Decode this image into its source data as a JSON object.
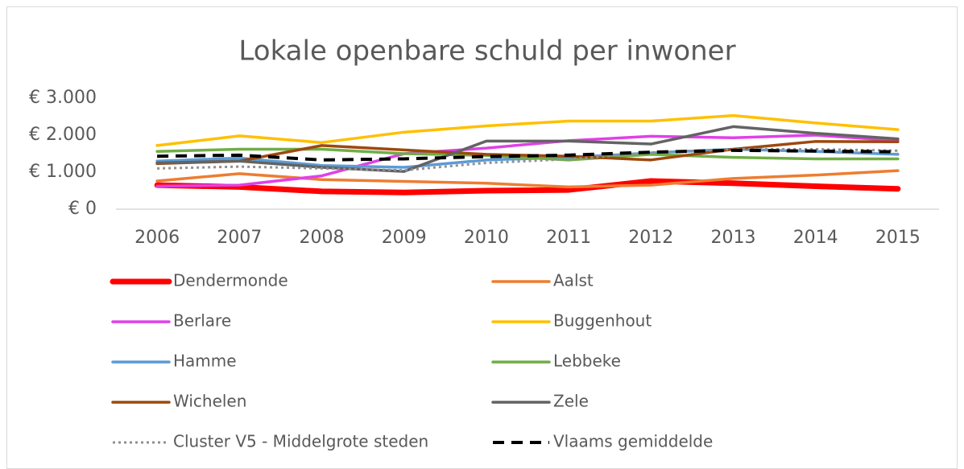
{
  "chart_data": {
    "type": "line",
    "title": "Lokale openbare schuld per inwoner",
    "categories": [
      "2006",
      "2007",
      "2008",
      "2009",
      "2010",
      "2011",
      "2012",
      "2013",
      "2014",
      "2015"
    ],
    "ylim": [
      0,
      3000
    ],
    "yticks": [
      {
        "value": 0,
        "label": "€ 0"
      },
      {
        "value": 1000,
        "label": "€ 1.000"
      },
      {
        "value": 2000,
        "label": "€ 2.000"
      },
      {
        "value": 3000,
        "label": "€ 3.000"
      }
    ],
    "grid": false,
    "legend": "bottom",
    "series": [
      {
        "name": "Dendermonde",
        "color": "#ff0000",
        "line_width": 7,
        "style": "solid",
        "values": [
          650,
          600,
          480,
          450,
          500,
          520,
          760,
          700,
          620,
          550
        ]
      },
      {
        "name": "Aalst",
        "color": "#ed7d31",
        "line_width": 3.5,
        "style": "solid",
        "values": [
          760,
          960,
          800,
          750,
          700,
          600,
          650,
          830,
          920,
          1040
        ]
      },
      {
        "name": "Berlare",
        "color": "#e040e8",
        "line_width": 3.5,
        "style": "solid",
        "values": [
          620,
          650,
          900,
          1500,
          1650,
          1850,
          1970,
          1930,
          2000,
          1850
        ]
      },
      {
        "name": "Buggenhout",
        "color": "#ffc000",
        "line_width": 3.5,
        "style": "solid",
        "values": [
          1720,
          1980,
          1800,
          2080,
          2250,
          2380,
          2380,
          2530,
          2330,
          2150
        ]
      },
      {
        "name": "Hamme",
        "color": "#5b9bd5",
        "line_width": 3.5,
        "style": "solid",
        "values": [
          1300,
          1380,
          1180,
          1130,
          1330,
          1400,
          1520,
          1620,
          1560,
          1480
        ]
      },
      {
        "name": "Lebbeke",
        "color": "#70ad47",
        "line_width": 3.5,
        "style": "solid",
        "values": [
          1560,
          1620,
          1620,
          1500,
          1450,
          1330,
          1480,
          1400,
          1360,
          1360
        ]
      },
      {
        "name": "Wichelen",
        "color": "#9e480e",
        "line_width": 3.5,
        "style": "solid",
        "values": [
          1230,
          1300,
          1720,
          1600,
          1480,
          1430,
          1330,
          1620,
          1830,
          1820
        ]
      },
      {
        "name": "Zele",
        "color": "#636363",
        "line_width": 3.5,
        "style": "solid",
        "values": [
          1250,
          1300,
          1130,
          1020,
          1840,
          1840,
          1760,
          2230,
          2050,
          1900
        ]
      },
      {
        "name": "Cluster V5 - Middelgrote steden",
        "color": "#909090",
        "line_width": 3,
        "style": "dotted",
        "values": [
          1100,
          1150,
          1100,
          1050,
          1250,
          1350,
          1530,
          1620,
          1620,
          1580
        ]
      },
      {
        "name": "Vlaams gemiddelde",
        "color": "#000000",
        "line_width": 4,
        "style": "dashed",
        "values": [
          1430,
          1460,
          1330,
          1360,
          1420,
          1460,
          1540,
          1590,
          1570,
          1550
        ]
      }
    ]
  }
}
